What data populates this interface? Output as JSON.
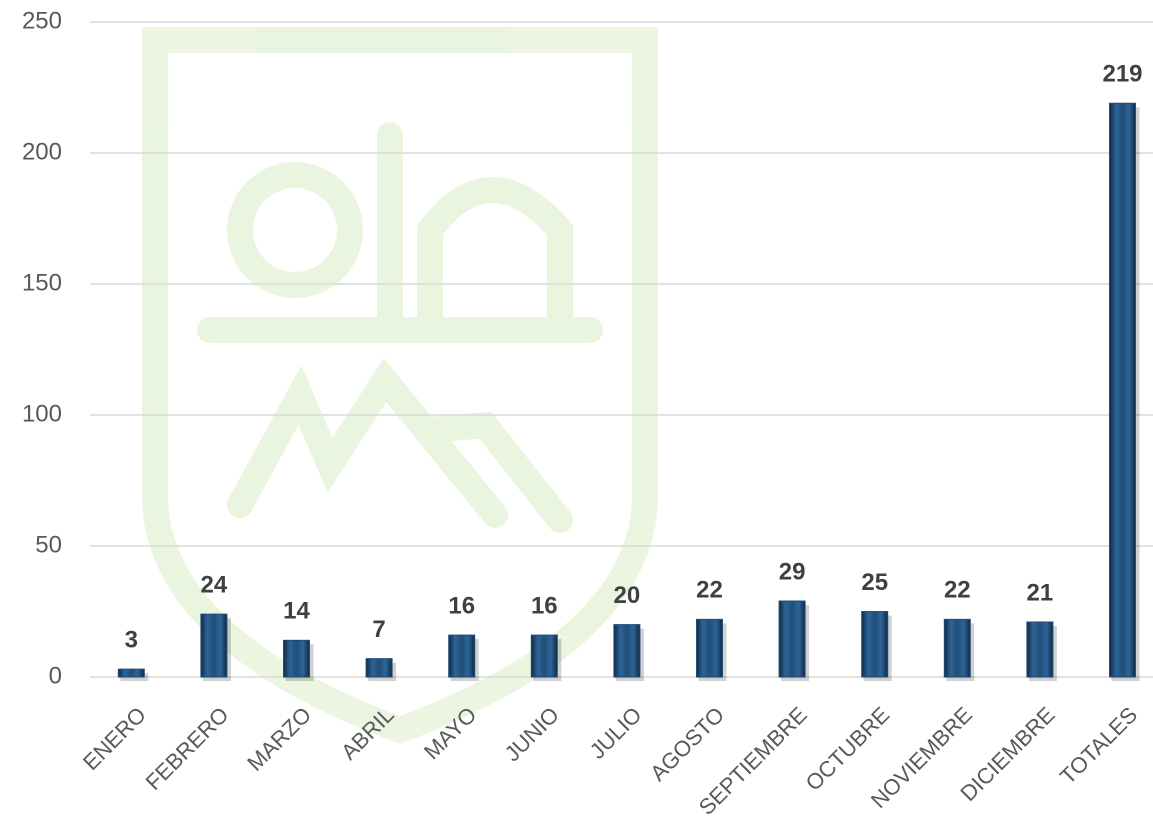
{
  "chart_data": {
    "type": "bar",
    "categories": [
      "ENERO",
      "FEBRERO",
      "MARZO",
      "ABRIL",
      "MAYO",
      "JUNIO",
      "JULIO",
      "AGOSTO",
      "SEPTIEMBRE",
      "OCTUBRE",
      "NOVIEMBRE",
      "DICIEMBRE",
      "TOTALES"
    ],
    "values": [
      3,
      24,
      14,
      7,
      16,
      16,
      20,
      22,
      29,
      25,
      22,
      21,
      219
    ],
    "color": "#1f4e79",
    "ylim": [
      0,
      250
    ],
    "yticks": [
      0,
      50,
      100,
      150,
      200,
      250
    ],
    "grid": true
  }
}
